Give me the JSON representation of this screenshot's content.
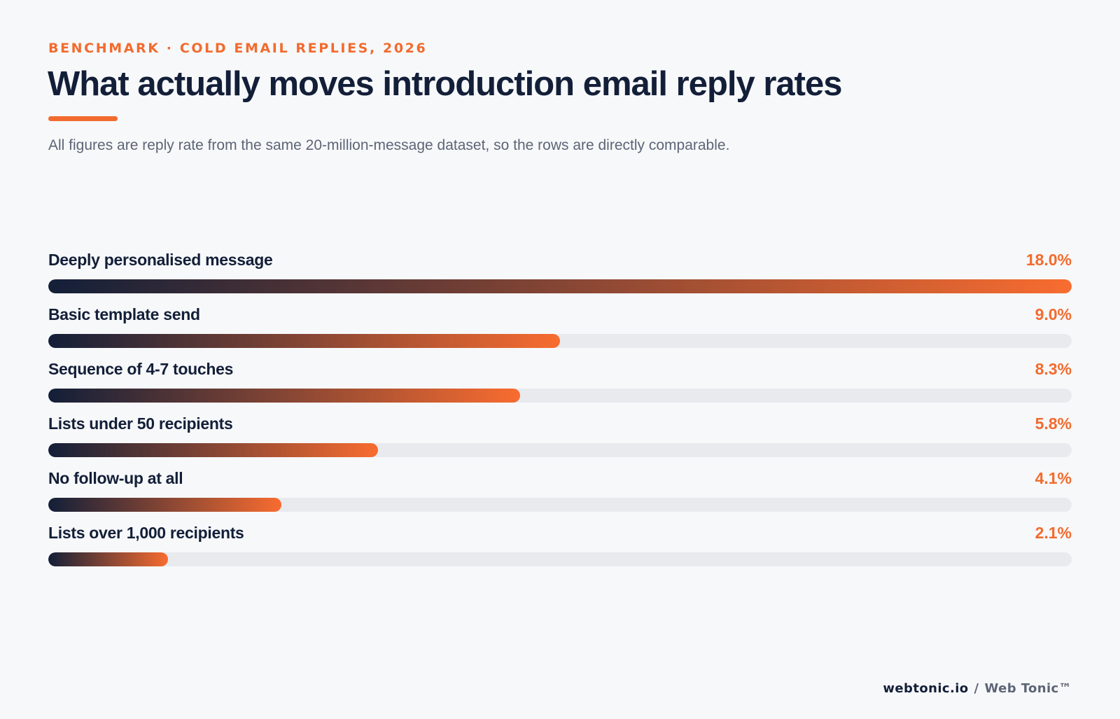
{
  "header": {
    "eyebrow": "BENCHMARK · COLD EMAIL REPLIES, 2026",
    "title": "What actually moves introduction email reply rates",
    "subtitle": "All figures are reply rate from the same 20-million-message dataset, so the rows are directly comparable."
  },
  "chart_data": {
    "type": "bar",
    "orientation": "horizontal",
    "categories": [
      "Deeply personalised message",
      "Basic template send",
      "Sequence of 4-7 touches",
      "Lists under 50 recipients",
      "No follow-up at all",
      "Lists over 1,000 recipients"
    ],
    "values": [
      18.0,
      9.0,
      8.3,
      5.8,
      4.1,
      2.1
    ],
    "value_labels": [
      "18.0%",
      "9.0%",
      "8.3%",
      "5.8%",
      "4.1%",
      "2.1%"
    ],
    "xlim": [
      0,
      18.0
    ],
    "grid": false,
    "colors": {
      "bar_start": "#131f38",
      "bar_end": "#f86c30",
      "track": "#e8eaee",
      "value_text": "#f26b2e"
    }
  },
  "footer": {
    "site": "webtonic.io",
    "separator": "/",
    "brand": "Web Tonic™"
  }
}
